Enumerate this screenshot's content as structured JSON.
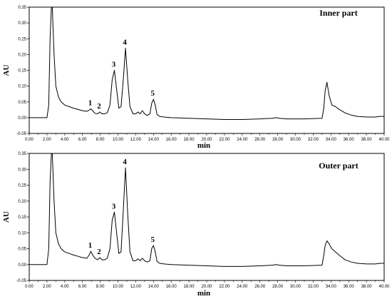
{
  "chart_data": [
    {
      "type": "line",
      "title": "Inner part",
      "xlabel": "min",
      "ylabel": "AU",
      "xlim": [
        0.0,
        40.0
      ],
      "ylim": [
        -0.05,
        0.35
      ],
      "x_ticks": [
        "0.00",
        "2.00",
        "4.00",
        "6.00",
        "8.00",
        "10.00",
        "12.00",
        "14.00",
        "16.00",
        "18.00",
        "20.00",
        "22.00",
        "24.00",
        "26.00",
        "28.00",
        "30.00",
        "32.00",
        "34.00",
        "36.00",
        "38.00",
        "40.00"
      ],
      "y_ticks": [
        "-0.05",
        "0.00",
        "0.05",
        "0.10",
        "0.15",
        "0.20",
        "0.25",
        "0.30",
        "0.35"
      ],
      "grid": false,
      "series": [
        {
          "x": [
            0,
            2.0,
            2.2,
            2.35,
            2.5,
            2.6,
            2.8,
            3.0,
            3.3,
            3.6,
            4.0,
            4.5,
            5.0,
            5.5,
            6.0,
            6.5,
            6.75,
            6.95,
            7.15,
            7.4,
            7.7,
            7.95,
            8.2,
            8.5,
            8.8,
            9.1,
            9.35,
            9.6,
            9.85,
            10.1,
            10.35,
            10.6,
            10.85,
            11.1,
            11.35,
            11.7,
            12.0,
            12.25,
            12.5,
            12.75,
            13.0,
            13.3,
            13.6,
            13.8,
            14.0,
            14.2,
            14.4,
            14.7,
            15.2,
            16.0,
            18.0,
            20.0,
            22.0,
            24.0,
            26.0,
            27.4,
            27.8,
            28.2,
            29.0,
            31.0,
            33.0,
            33.2,
            33.35,
            33.55,
            33.8,
            34.1,
            34.5,
            35.0,
            35.6,
            36.3,
            37.0,
            38.0,
            39.0,
            39.5,
            40.0
          ],
          "y": [
            0,
            0.0,
            0.04,
            0.25,
            0.35,
            0.35,
            0.2,
            0.1,
            0.065,
            0.05,
            0.04,
            0.035,
            0.03,
            0.026,
            0.022,
            0.02,
            0.024,
            0.028,
            0.022,
            0.014,
            0.012,
            0.018,
            0.012,
            0.012,
            0.016,
            0.04,
            0.12,
            0.15,
            0.09,
            0.03,
            0.035,
            0.12,
            0.22,
            0.12,
            0.035,
            0.012,
            0.012,
            0.018,
            0.012,
            0.022,
            0.012,
            0.007,
            0.012,
            0.045,
            0.058,
            0.04,
            0.01,
            0.004,
            0.002,
            0.0,
            -0.002,
            -0.004,
            -0.006,
            -0.006,
            -0.004,
            -0.002,
            0.0,
            -0.002,
            -0.004,
            -0.004,
            -0.002,
            0.03,
            0.085,
            0.112,
            0.07,
            0.04,
            0.035,
            0.025,
            0.015,
            0.008,
            0.004,
            0.002,
            0.002,
            0.004,
            0.004
          ]
        }
      ],
      "peak_labels": [
        {
          "text": "1",
          "x": 6.95,
          "y": 0.028
        },
        {
          "text": "2",
          "x": 7.95,
          "y": 0.018
        },
        {
          "text": "3",
          "x": 9.6,
          "y": 0.15
        },
        {
          "text": "4",
          "x": 10.85,
          "y": 0.22
        },
        {
          "text": "5",
          "x": 14.0,
          "y": 0.058
        }
      ]
    },
    {
      "type": "line",
      "title": "Outer part",
      "xlabel": "min",
      "ylabel": "AU",
      "xlim": [
        0.0,
        40.0
      ],
      "ylim": [
        -0.05,
        0.35
      ],
      "x_ticks": [
        "0.00",
        "2.00",
        "4.00",
        "6.00",
        "8.00",
        "10.00",
        "12.00",
        "14.00",
        "16.00",
        "18.00",
        "20.00",
        "22.00",
        "24.00",
        "26.00",
        "28.00",
        "30.00",
        "32.00",
        "34.00",
        "36.00",
        "38.00",
        "40.00"
      ],
      "y_ticks": [
        "-0.05",
        "0.00",
        "0.05",
        "0.10",
        "0.15",
        "0.20",
        "0.25",
        "0.30",
        "0.35"
      ],
      "grid": false,
      "series": [
        {
          "x": [
            0,
            2.0,
            2.2,
            2.35,
            2.5,
            2.6,
            2.8,
            3.0,
            3.3,
            3.6,
            4.0,
            4.5,
            5.0,
            5.5,
            6.0,
            6.5,
            6.75,
            6.95,
            7.15,
            7.4,
            7.7,
            7.95,
            8.2,
            8.5,
            8.8,
            9.1,
            9.35,
            9.6,
            9.85,
            10.1,
            10.35,
            10.6,
            10.85,
            11.1,
            11.35,
            11.7,
            12.0,
            12.25,
            12.5,
            12.75,
            13.0,
            13.3,
            13.6,
            13.8,
            14.0,
            14.2,
            14.4,
            14.7,
            15.2,
            16.0,
            18.0,
            20.0,
            22.0,
            24.0,
            26.0,
            27.4,
            27.8,
            28.2,
            29.0,
            31.0,
            33.0,
            33.2,
            33.35,
            33.55,
            33.8,
            34.1,
            34.5,
            35.0,
            35.6,
            36.3,
            37.0,
            38.0,
            39.0,
            39.5,
            40.0
          ],
          "y": [
            0,
            0.0,
            0.05,
            0.26,
            0.35,
            0.35,
            0.2,
            0.1,
            0.065,
            0.05,
            0.04,
            0.035,
            0.03,
            0.026,
            0.022,
            0.02,
            0.03,
            0.042,
            0.03,
            0.02,
            0.015,
            0.022,
            0.015,
            0.015,
            0.02,
            0.05,
            0.14,
            0.165,
            0.1,
            0.035,
            0.04,
            0.17,
            0.305,
            0.16,
            0.04,
            0.012,
            0.012,
            0.018,
            0.012,
            0.02,
            0.012,
            0.008,
            0.012,
            0.05,
            0.06,
            0.04,
            0.01,
            0.004,
            0.002,
            0.0,
            -0.002,
            -0.004,
            -0.006,
            -0.006,
            -0.004,
            -0.002,
            0.0,
            -0.002,
            -0.004,
            -0.004,
            -0.002,
            0.03,
            0.06,
            0.075,
            0.065,
            0.05,
            0.04,
            0.028,
            0.015,
            0.008,
            0.004,
            0.002,
            0.002,
            0.004,
            0.004
          ]
        }
      ],
      "peak_labels": [
        {
          "text": "1",
          "x": 6.95,
          "y": 0.042
        },
        {
          "text": "2",
          "x": 7.95,
          "y": 0.022
        },
        {
          "text": "3",
          "x": 9.6,
          "y": 0.165
        },
        {
          "text": "4",
          "x": 10.85,
          "y": 0.305
        },
        {
          "text": "5",
          "x": 14.0,
          "y": 0.06
        }
      ]
    }
  ]
}
